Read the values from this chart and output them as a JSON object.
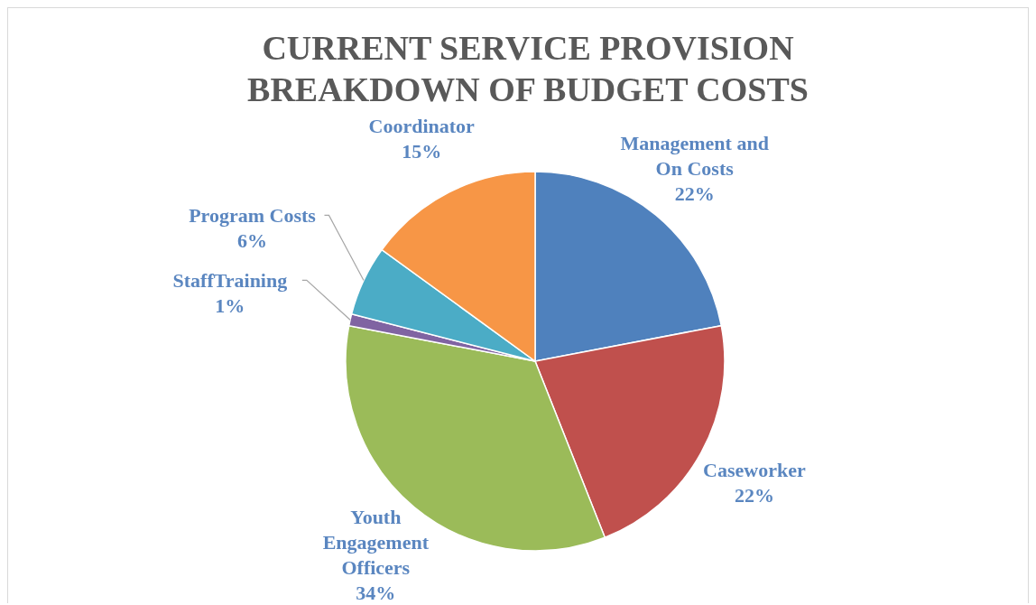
{
  "chart_data": {
    "type": "pie",
    "title": "CURRENT SERVICE PROVISION BREAKDOWN OF BUDGET COSTS",
    "categories": [
      "Management and On Costs",
      "Caseworker",
      "Youth Engagement Officers",
      "StaffTraining",
      "Program Costs",
      "Coordinator"
    ],
    "values": [
      22,
      22,
      34,
      1,
      6,
      15
    ],
    "colors": [
      "#4f81bd",
      "#c0504d",
      "#9bbb59",
      "#8064a2",
      "#4bacc6",
      "#f79646"
    ],
    "value_labels": [
      "22%",
      "22%",
      "34%",
      "1%",
      "6%",
      "15%"
    ]
  }
}
